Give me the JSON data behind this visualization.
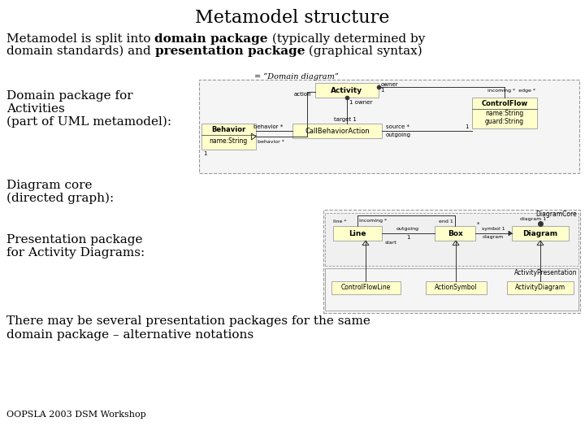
{
  "title": "Metamodel structure",
  "bg_color": "#ffffff",
  "title_fontsize": 16,
  "title_font": "serif",
  "body_fontsize": 11,
  "body_font": "serif",
  "small_fontsize": 9,
  "footer_text": "OOPSLA 2003 DSM Workshop",
  "footer_fontsize": 8,
  "intro_line1_parts": [
    {
      "text": "Metamodel is split into ",
      "bold": false
    },
    {
      "text": "domain package",
      "bold": true
    },
    {
      "text": " (typically determined by",
      "bold": false
    }
  ],
  "intro_line2_parts": [
    {
      "text": "domain standards) and ",
      "bold": false
    },
    {
      "text": "presentation package",
      "bold": true
    },
    {
      "text": " (graphical syntax)",
      "bold": false
    }
  ],
  "label1_lines": [
    "Domain package for",
    "Activities",
    "(part of UML metamodel):"
  ],
  "label2_lines": [
    "Diagram core",
    "(directed graph):"
  ],
  "label3_lines": [
    "Presentation package",
    "for Activity Diagrams:"
  ],
  "bottom_line1": "There may be several presentation packages for the same",
  "bottom_line2": "domain package – alternative notations",
  "diagram_label": "= “Domain diagram”",
  "uml_box_color": "#ffffcc",
  "uml_border_color": "#aaaaaa",
  "uml_line_color": "#333333",
  "uml_text_color": "#000000"
}
